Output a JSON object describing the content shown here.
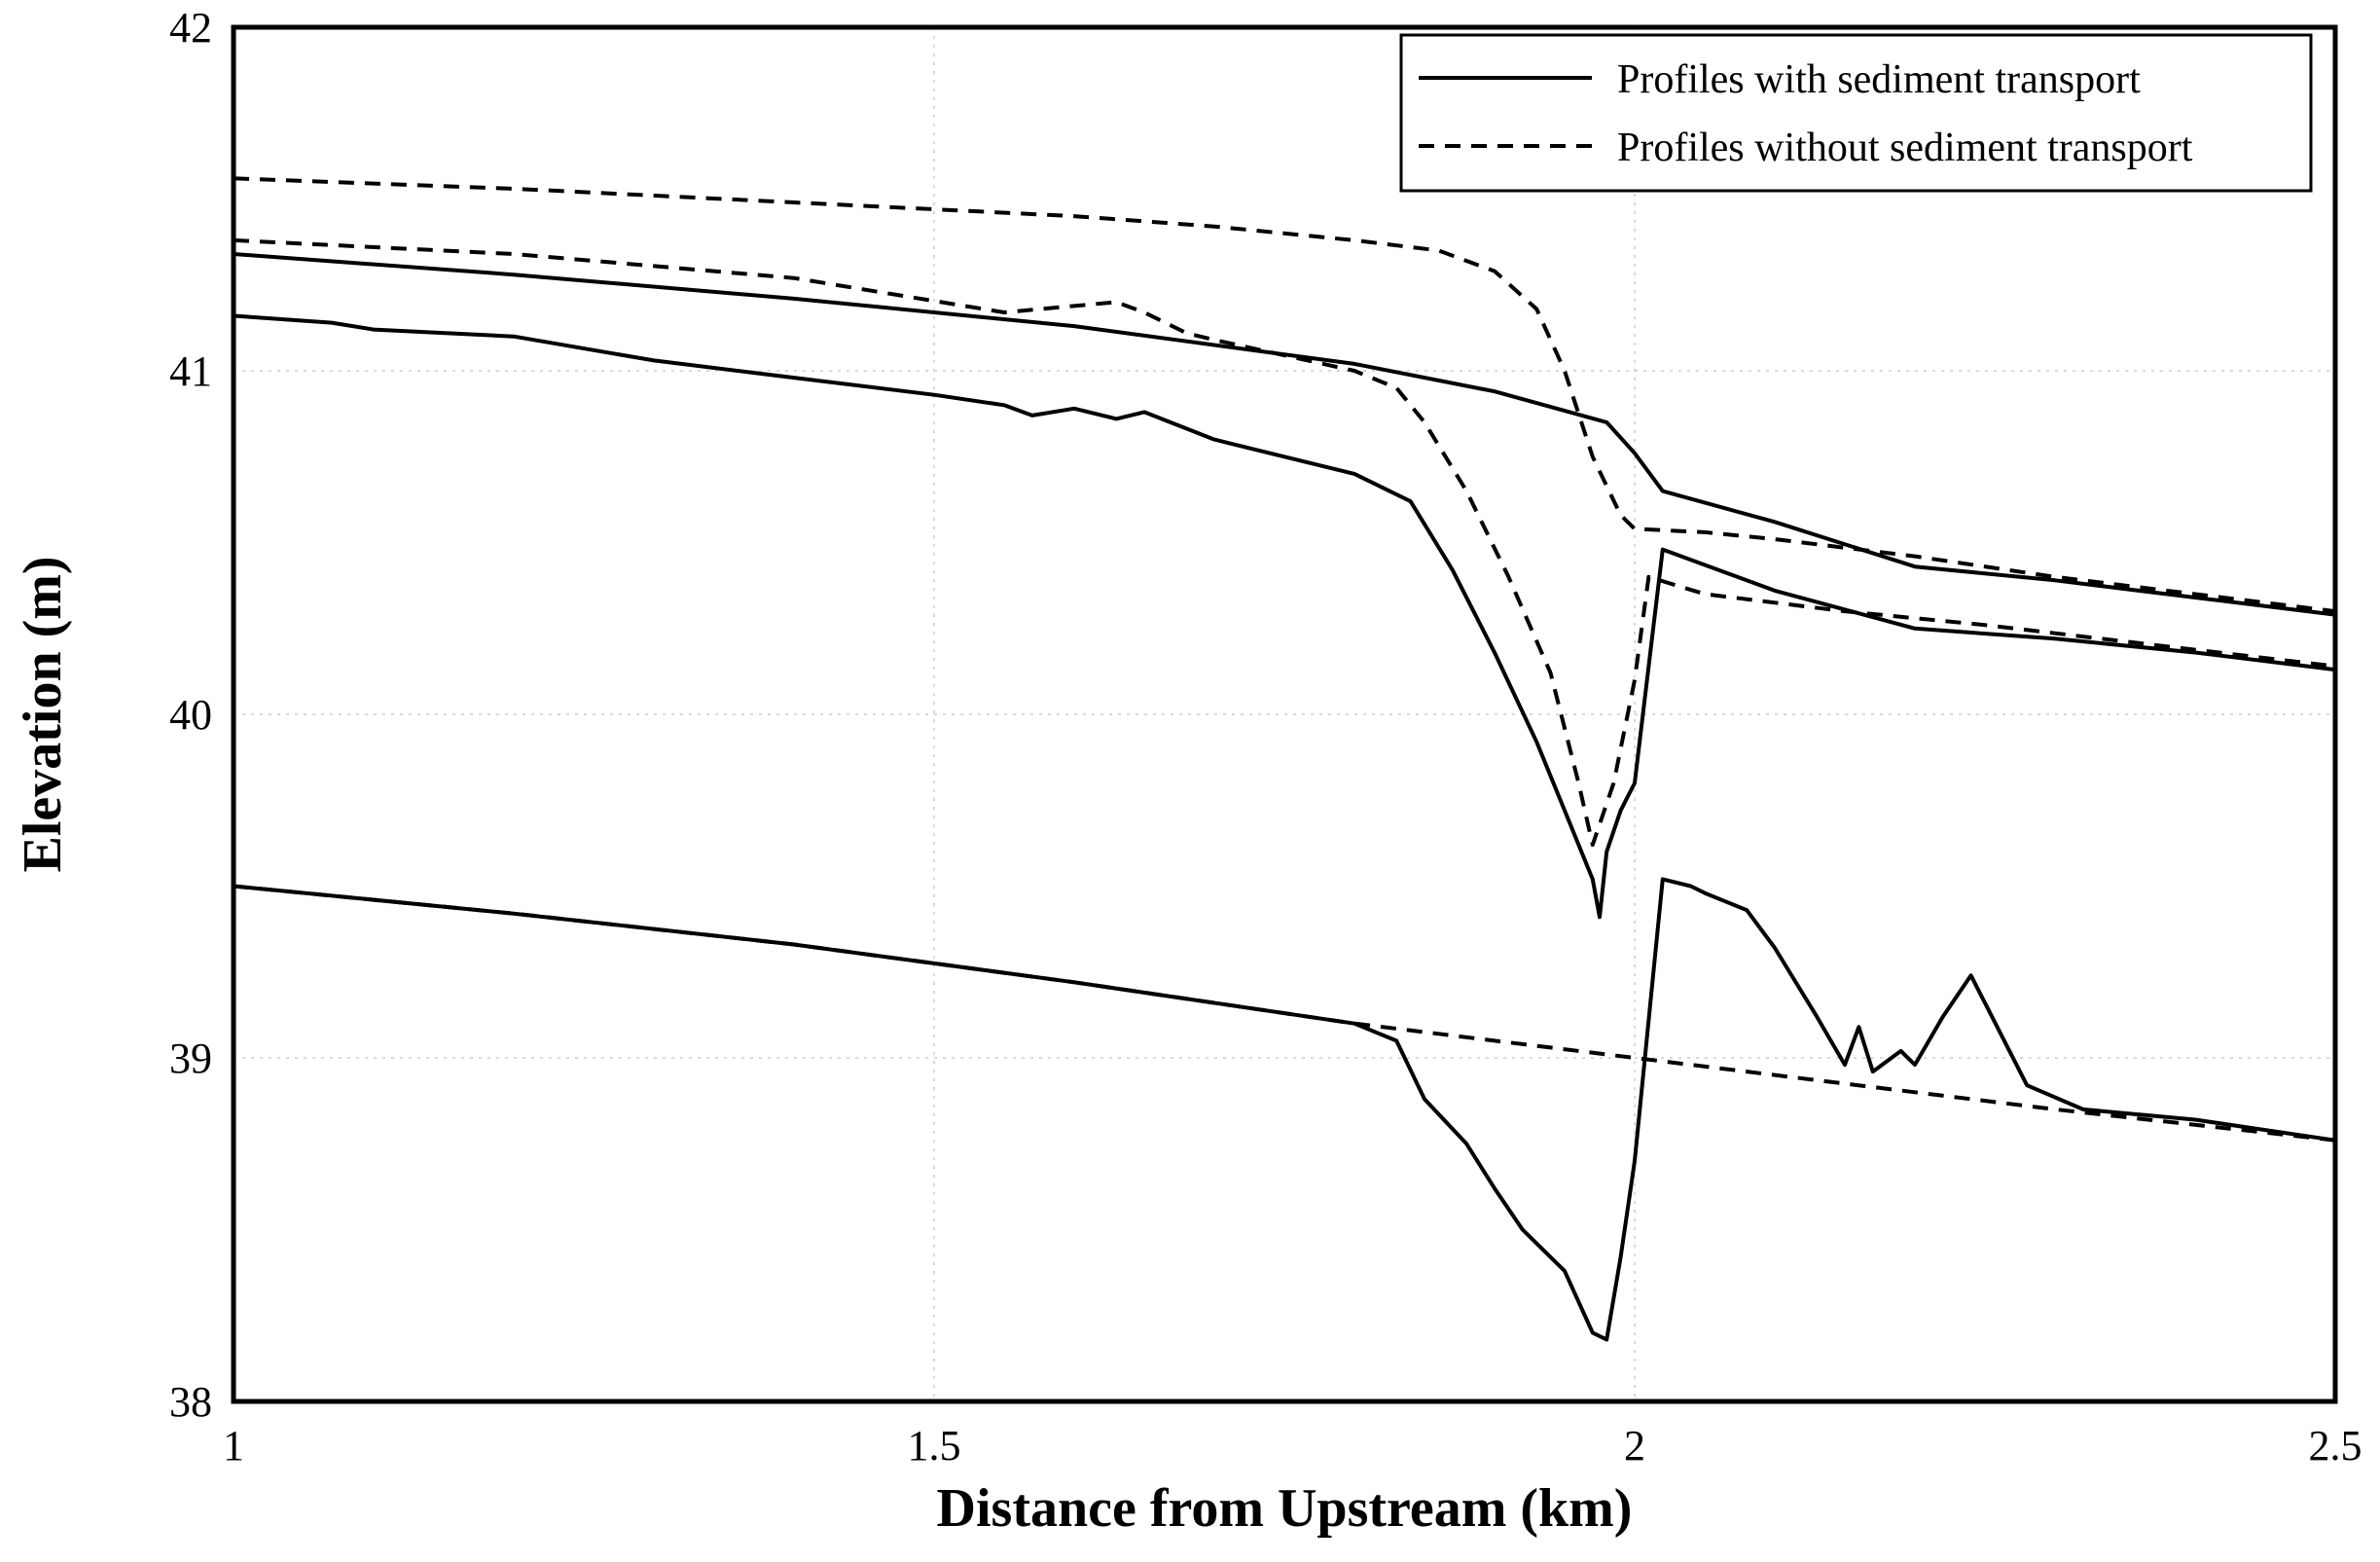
{
  "chart_data": {
    "type": "line",
    "title": "",
    "xlabel": "Distance from Upstream (km)",
    "ylabel": "Elevation (m)",
    "xlim": [
      1,
      2.5
    ],
    "ylim": [
      38,
      42
    ],
    "xticks": [
      1,
      1.5,
      2,
      2.5
    ],
    "xtick_labels": [
      "1",
      "1.5",
      "2",
      "2.5"
    ],
    "yticks": [
      38,
      39,
      40,
      41,
      42
    ],
    "ytick_labels": [
      "38",
      "39",
      "40",
      "41",
      "42"
    ],
    "grid": true,
    "legend_position": "top-right",
    "legend": [
      {
        "label": "Profiles with sediment transport",
        "style": "solid"
      },
      {
        "label": "Profiles without sediment transport",
        "style": "dashed"
      }
    ],
    "colors": {
      "line": "#000000",
      "grid": "#d9d9d9",
      "frame": "#000000"
    },
    "series": [
      {
        "style": "dashed",
        "x": [
          1.0,
          1.2,
          1.4,
          1.6,
          1.7,
          1.8,
          1.86,
          1.9,
          1.93,
          1.95,
          1.97,
          1.99,
          2.0,
          2.05,
          2.1,
          2.2,
          2.3,
          2.5
        ],
        "y": [
          41.56,
          41.53,
          41.49,
          41.45,
          41.42,
          41.38,
          41.35,
          41.29,
          41.18,
          41.0,
          40.75,
          40.58,
          40.54,
          40.53,
          40.51,
          40.46,
          40.4,
          40.3
        ]
      },
      {
        "style": "dashed",
        "x": [
          1.0,
          1.2,
          1.4,
          1.55,
          1.63,
          1.65,
          1.68,
          1.7,
          1.8,
          1.83,
          1.85,
          1.88,
          1.91,
          1.94,
          1.96,
          1.97,
          1.985,
          2.0,
          2.01,
          2.05,
          2.15,
          2.2,
          2.25,
          2.5
        ],
        "y": [
          41.38,
          41.34,
          41.27,
          41.17,
          41.2,
          41.17,
          41.11,
          41.09,
          41.0,
          40.95,
          40.85,
          40.65,
          40.4,
          40.12,
          39.8,
          39.62,
          39.8,
          40.1,
          40.4,
          40.35,
          40.3,
          40.28,
          40.26,
          40.14
        ]
      },
      {
        "style": "dashed",
        "x": [
          1.0,
          1.2,
          1.4,
          1.6,
          1.8,
          2.0,
          2.2,
          2.3,
          2.5
        ],
        "y": [
          39.5,
          39.42,
          39.33,
          39.22,
          39.1,
          39.0,
          38.9,
          38.85,
          38.76
        ]
      },
      {
        "style": "solid",
        "x": [
          1.0,
          1.2,
          1.4,
          1.6,
          1.8,
          1.9,
          1.98,
          2.0,
          2.02,
          2.1,
          2.2,
          2.3,
          2.4,
          2.5
        ],
        "y": [
          41.34,
          41.28,
          41.21,
          41.13,
          41.02,
          40.94,
          40.85,
          40.76,
          40.65,
          40.56,
          40.43,
          40.39,
          40.34,
          40.29
        ]
      },
      {
        "style": "solid",
        "x": [
          1.0,
          1.07,
          1.1,
          1.2,
          1.3,
          1.4,
          1.5,
          1.55,
          1.57,
          1.6,
          1.63,
          1.65,
          1.7,
          1.75,
          1.8,
          1.84,
          1.87,
          1.9,
          1.93,
          1.95,
          1.97,
          1.975,
          1.98,
          1.99,
          2.0,
          2.02,
          2.1,
          2.2,
          2.3,
          2.4,
          2.5
        ],
        "y": [
          41.16,
          41.14,
          41.12,
          41.1,
          41.03,
          40.98,
          40.93,
          40.9,
          40.87,
          40.89,
          40.86,
          40.88,
          40.8,
          40.75,
          40.7,
          40.62,
          40.42,
          40.18,
          39.92,
          39.72,
          39.52,
          39.41,
          39.6,
          39.72,
          39.8,
          40.48,
          40.36,
          40.25,
          40.22,
          40.18,
          40.13
        ]
      },
      {
        "style": "solid",
        "x": [
          1.0,
          1.2,
          1.4,
          1.6,
          1.8,
          1.83,
          1.85,
          1.88,
          1.9,
          1.92,
          1.95,
          1.97,
          1.98,
          1.99,
          2.0,
          2.02,
          2.04,
          2.05,
          2.08,
          2.1,
          2.13,
          2.15,
          2.16,
          2.17,
          2.19,
          2.2,
          2.22,
          2.24,
          2.28,
          2.32,
          2.4,
          2.5
        ],
        "y": [
          39.5,
          39.42,
          39.33,
          39.22,
          39.1,
          39.05,
          38.88,
          38.75,
          38.62,
          38.5,
          38.38,
          38.2,
          38.18,
          38.42,
          38.7,
          39.52,
          39.5,
          39.48,
          39.43,
          39.32,
          39.12,
          38.98,
          39.09,
          38.96,
          39.02,
          38.98,
          39.12,
          39.24,
          38.92,
          38.85,
          38.82,
          38.76
        ]
      }
    ]
  }
}
